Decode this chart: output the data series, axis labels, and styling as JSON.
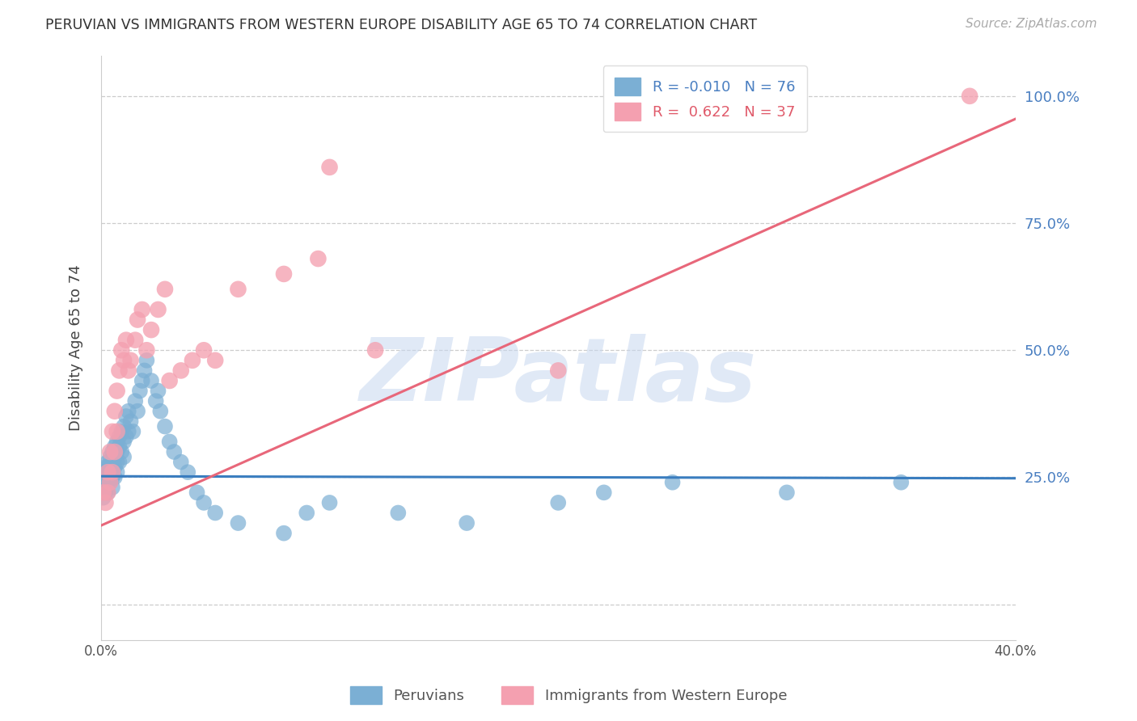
{
  "title": "PERUVIAN VS IMMIGRANTS FROM WESTERN EUROPE DISABILITY AGE 65 TO 74 CORRELATION CHART",
  "source": "Source: ZipAtlas.com",
  "ylabel": "Disability Age 65 to 74",
  "legend_label_blue": "Peruvians",
  "legend_label_pink": "Immigrants from Western Europe",
  "R_blue": -0.01,
  "N_blue": 76,
  "R_pink": 0.622,
  "N_pink": 37,
  "x_min": 0.0,
  "x_max": 0.4,
  "y_min": -0.07,
  "y_max": 1.08,
  "y_ticks": [
    0.0,
    0.25,
    0.5,
    0.75,
    1.0
  ],
  "y_tick_labels_right": [
    "",
    "25.0%",
    "50.0%",
    "75.0%",
    "100.0%"
  ],
  "x_ticks": [
    0.0,
    0.1,
    0.2,
    0.3,
    0.4
  ],
  "x_tick_labels": [
    "0.0%",
    "",
    "",
    "",
    "40.0%"
  ],
  "color_blue": "#7bafd4",
  "color_pink": "#f4a0b0",
  "line_color_blue": "#3a7dbf",
  "line_color_pink": "#e8677a",
  "watermark": "ZIPatlas",
  "watermark_color": "#c8d8f0",
  "blue_points_x": [
    0.001,
    0.001,
    0.001,
    0.001,
    0.001,
    0.001,
    0.002,
    0.002,
    0.002,
    0.002,
    0.002,
    0.003,
    0.003,
    0.003,
    0.003,
    0.003,
    0.004,
    0.004,
    0.004,
    0.004,
    0.005,
    0.005,
    0.005,
    0.005,
    0.005,
    0.006,
    0.006,
    0.006,
    0.006,
    0.007,
    0.007,
    0.007,
    0.007,
    0.008,
    0.008,
    0.008,
    0.009,
    0.009,
    0.01,
    0.01,
    0.01,
    0.011,
    0.011,
    0.012,
    0.012,
    0.013,
    0.014,
    0.015,
    0.016,
    0.017,
    0.018,
    0.019,
    0.02,
    0.022,
    0.024,
    0.025,
    0.026,
    0.028,
    0.03,
    0.032,
    0.035,
    0.038,
    0.042,
    0.045,
    0.05,
    0.06,
    0.08,
    0.09,
    0.1,
    0.13,
    0.16,
    0.2,
    0.22,
    0.25,
    0.3,
    0.35
  ],
  "blue_points_y": [
    0.26,
    0.25,
    0.24,
    0.23,
    0.22,
    0.21,
    0.27,
    0.26,
    0.25,
    0.24,
    0.22,
    0.28,
    0.27,
    0.26,
    0.24,
    0.22,
    0.29,
    0.27,
    0.26,
    0.24,
    0.3,
    0.28,
    0.27,
    0.25,
    0.23,
    0.31,
    0.29,
    0.27,
    0.25,
    0.32,
    0.3,
    0.28,
    0.26,
    0.33,
    0.31,
    0.28,
    0.34,
    0.3,
    0.35,
    0.32,
    0.29,
    0.37,
    0.33,
    0.38,
    0.34,
    0.36,
    0.34,
    0.4,
    0.38,
    0.42,
    0.44,
    0.46,
    0.48,
    0.44,
    0.4,
    0.42,
    0.38,
    0.35,
    0.32,
    0.3,
    0.28,
    0.26,
    0.22,
    0.2,
    0.18,
    0.16,
    0.14,
    0.18,
    0.2,
    0.18,
    0.16,
    0.2,
    0.22,
    0.24,
    0.22,
    0.24
  ],
  "pink_points_x": [
    0.001,
    0.002,
    0.003,
    0.003,
    0.004,
    0.004,
    0.005,
    0.005,
    0.006,
    0.006,
    0.007,
    0.007,
    0.008,
    0.009,
    0.01,
    0.011,
    0.012,
    0.013,
    0.015,
    0.016,
    0.018,
    0.02,
    0.022,
    0.025,
    0.028,
    0.03,
    0.035,
    0.04,
    0.045,
    0.05,
    0.06,
    0.08,
    0.095,
    0.1,
    0.12,
    0.2,
    0.38
  ],
  "pink_points_y": [
    0.22,
    0.2,
    0.26,
    0.22,
    0.3,
    0.24,
    0.34,
    0.26,
    0.38,
    0.3,
    0.42,
    0.34,
    0.46,
    0.5,
    0.48,
    0.52,
    0.46,
    0.48,
    0.52,
    0.56,
    0.58,
    0.5,
    0.54,
    0.58,
    0.62,
    0.44,
    0.46,
    0.48,
    0.5,
    0.48,
    0.62,
    0.65,
    0.68,
    0.86,
    0.5,
    0.46,
    1.0
  ],
  "blue_trend_x": [
    0.0,
    0.4
  ],
  "blue_trend_y": [
    0.252,
    0.248
  ],
  "pink_trend_x": [
    0.0,
    0.4
  ],
  "pink_trend_y": [
    0.155,
    0.955
  ],
  "grid_color": "#cccccc",
  "spine_color": "#cccccc"
}
